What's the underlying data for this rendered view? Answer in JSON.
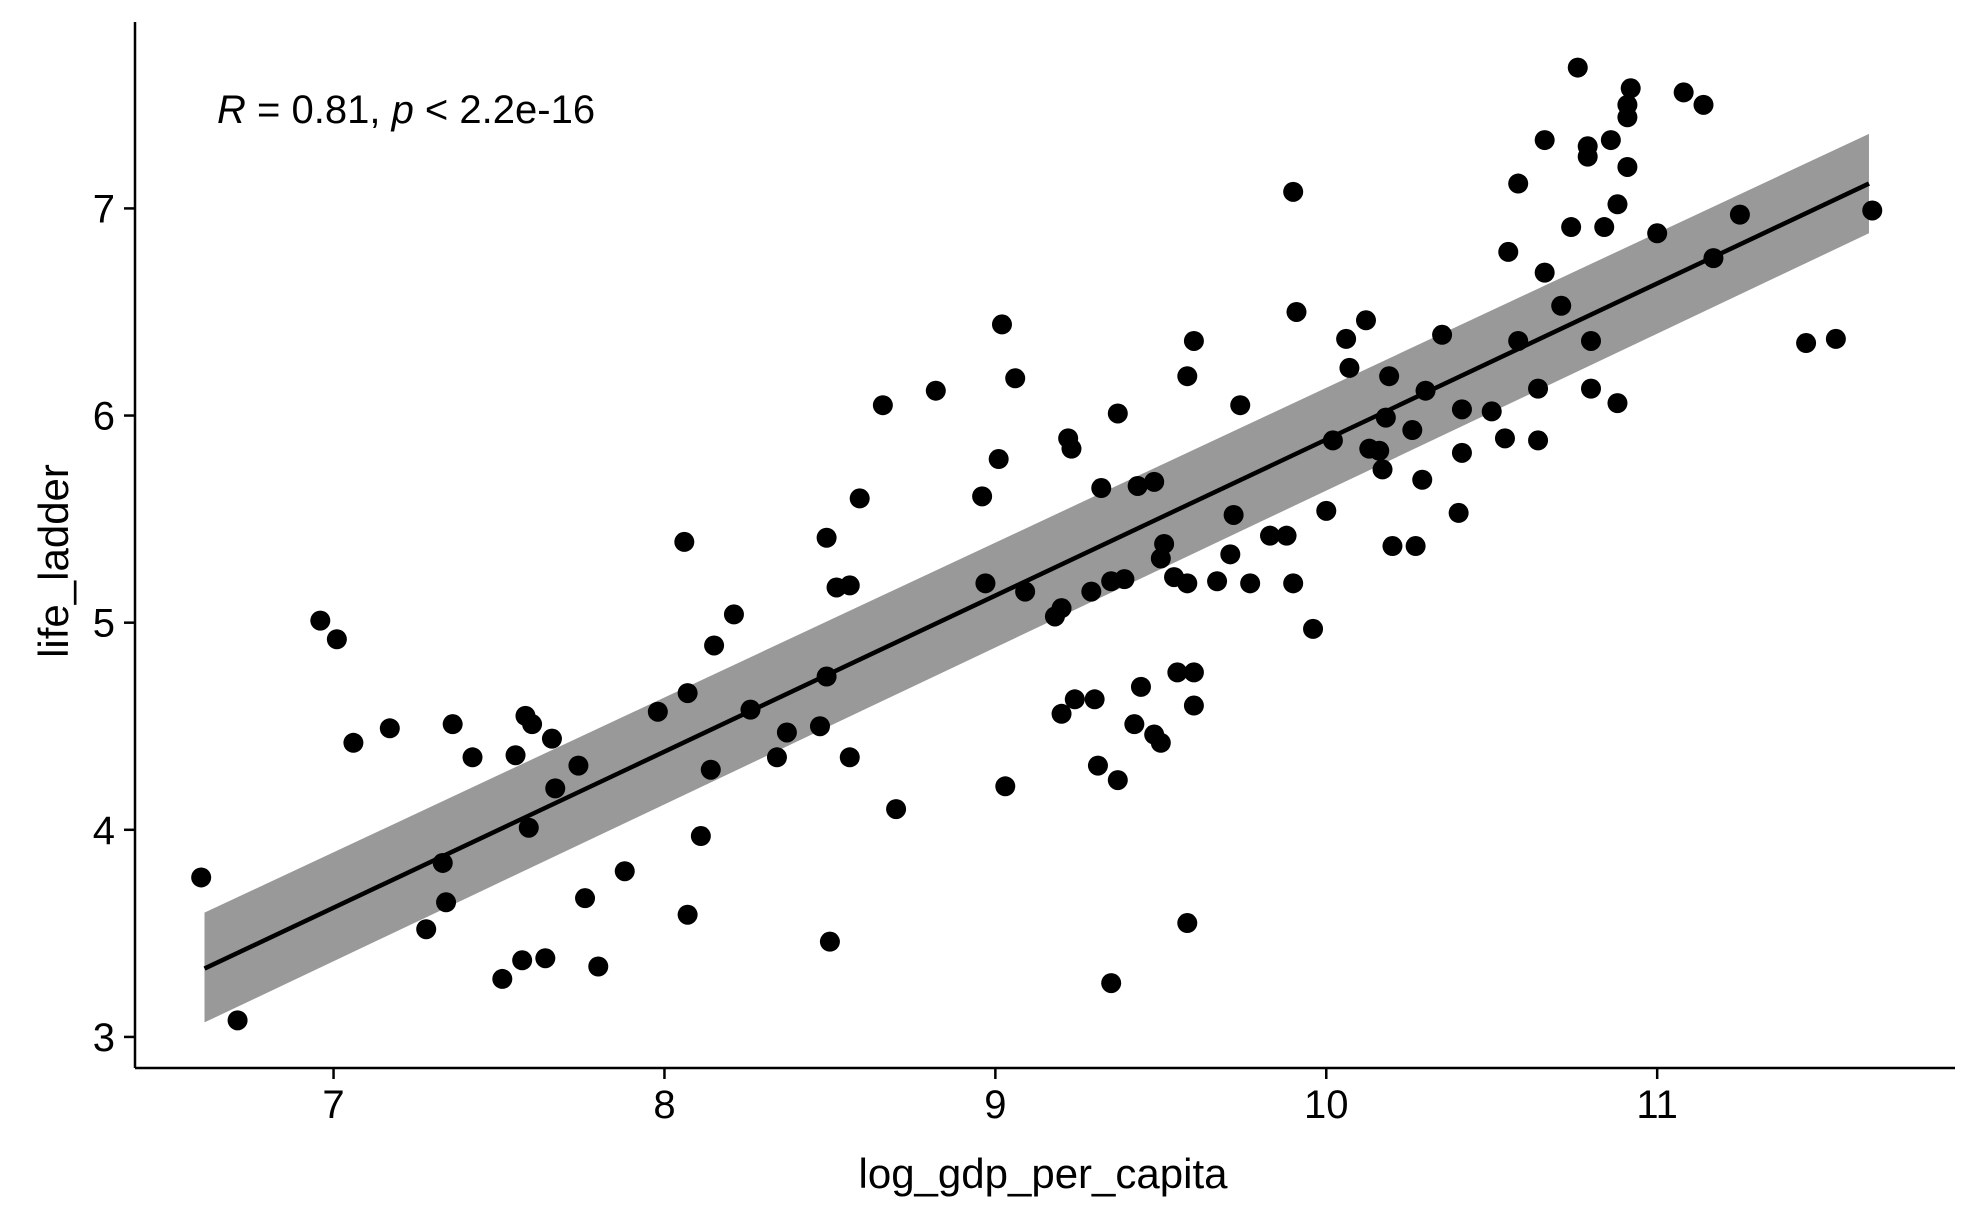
{
  "chart_data": {
    "type": "scatter",
    "title": "",
    "xlabel": "log_gdp_per_capita",
    "ylabel": "life_ladder",
    "xlim": [
      6.4,
      11.9
    ],
    "ylim": [
      2.85,
      7.9
    ],
    "x_ticks": [
      7,
      8,
      9,
      10,
      11
    ],
    "y_ticks": [
      3,
      4,
      5,
      6,
      7
    ],
    "x_tick_labels": [
      "7",
      "8",
      "9",
      "10",
      "11"
    ],
    "y_tick_labels": [
      "3",
      "4",
      "5",
      "6",
      "7"
    ],
    "grid": false,
    "legend": "none",
    "colors": {
      "points": "#000000",
      "line": "#000000",
      "band": "#999999"
    },
    "annotation": {
      "r_symbol": "R",
      "r_text": " = 0.81, ",
      "p_symbol": "p",
      "p_text": " < 2.2e-16"
    },
    "regression": {
      "x": [
        6.61,
        11.64
      ],
      "fit": [
        3.33,
        7.12
      ],
      "lower": [
        3.07,
        6.88
      ],
      "upper": [
        3.6,
        7.36
      ]
    },
    "points": [
      [
        6.6,
        3.77
      ],
      [
        6.71,
        3.08
      ],
      [
        6.96,
        5.01
      ],
      [
        7.01,
        4.92
      ],
      [
        7.06,
        4.42
      ],
      [
        7.17,
        4.49
      ],
      [
        7.28,
        3.52
      ],
      [
        7.33,
        3.84
      ],
      [
        7.34,
        3.65
      ],
      [
        7.36,
        4.51
      ],
      [
        7.42,
        4.35
      ],
      [
        7.51,
        3.28
      ],
      [
        7.55,
        4.36
      ],
      [
        7.57,
        3.37
      ],
      [
        7.58,
        4.55
      ],
      [
        7.59,
        4.01
      ],
      [
        7.6,
        4.51
      ],
      [
        7.64,
        3.38
      ],
      [
        7.66,
        4.44
      ],
      [
        7.67,
        4.2
      ],
      [
        7.74,
        4.31
      ],
      [
        7.76,
        3.67
      ],
      [
        7.8,
        3.34
      ],
      [
        7.88,
        3.8
      ],
      [
        7.98,
        4.57
      ],
      [
        8.06,
        5.39
      ],
      [
        8.07,
        4.66
      ],
      [
        8.07,
        3.59
      ],
      [
        8.11,
        3.97
      ],
      [
        8.14,
        4.29
      ],
      [
        8.15,
        4.89
      ],
      [
        8.21,
        5.04
      ],
      [
        8.26,
        4.58
      ],
      [
        8.34,
        4.35
      ],
      [
        8.37,
        4.47
      ],
      [
        8.47,
        4.5
      ],
      [
        8.49,
        5.41
      ],
      [
        8.49,
        4.74
      ],
      [
        8.5,
        3.46
      ],
      [
        8.52,
        5.17
      ],
      [
        8.56,
        5.18
      ],
      [
        8.56,
        4.35
      ],
      [
        8.59,
        5.6
      ],
      [
        8.66,
        6.05
      ],
      [
        8.7,
        4.1
      ],
      [
        8.82,
        6.12
      ],
      [
        8.96,
        5.61
      ],
      [
        8.97,
        5.19
      ],
      [
        9.01,
        5.79
      ],
      [
        9.02,
        6.44
      ],
      [
        9.03,
        4.21
      ],
      [
        9.06,
        6.18
      ],
      [
        9.09,
        5.15
      ],
      [
        9.18,
        5.03
      ],
      [
        9.2,
        5.07
      ],
      [
        9.2,
        4.56
      ],
      [
        9.22,
        5.89
      ],
      [
        9.23,
        5.84
      ],
      [
        9.24,
        4.63
      ],
      [
        9.29,
        5.15
      ],
      [
        9.3,
        4.63
      ],
      [
        9.31,
        4.31
      ],
      [
        9.32,
        5.65
      ],
      [
        9.35,
        5.2
      ],
      [
        9.35,
        3.26
      ],
      [
        9.37,
        6.01
      ],
      [
        9.37,
        4.24
      ],
      [
        9.39,
        5.21
      ],
      [
        9.42,
        4.51
      ],
      [
        9.43,
        5.66
      ],
      [
        9.44,
        4.69
      ],
      [
        9.48,
        5.68
      ],
      [
        9.48,
        4.46
      ],
      [
        9.5,
        5.31
      ],
      [
        9.5,
        4.42
      ],
      [
        9.51,
        5.38
      ],
      [
        9.54,
        5.22
      ],
      [
        9.55,
        4.76
      ],
      [
        9.58,
        6.19
      ],
      [
        9.58,
        5.19
      ],
      [
        9.58,
        3.55
      ],
      [
        9.6,
        6.36
      ],
      [
        9.6,
        4.76
      ],
      [
        9.6,
        4.6
      ],
      [
        9.67,
        5.2
      ],
      [
        9.71,
        5.33
      ],
      [
        9.72,
        5.52
      ],
      [
        9.74,
        6.05
      ],
      [
        9.77,
        5.19
      ],
      [
        9.83,
        5.42
      ],
      [
        9.88,
        5.42
      ],
      [
        9.9,
        7.08
      ],
      [
        9.9,
        5.19
      ],
      [
        9.91,
        6.5
      ],
      [
        9.96,
        4.97
      ],
      [
        10.0,
        5.54
      ],
      [
        10.02,
        5.88
      ],
      [
        10.06,
        6.37
      ],
      [
        10.07,
        6.23
      ],
      [
        10.12,
        6.46
      ],
      [
        10.13,
        5.84
      ],
      [
        10.16,
        5.83
      ],
      [
        10.17,
        5.74
      ],
      [
        10.18,
        5.99
      ],
      [
        10.19,
        6.19
      ],
      [
        10.2,
        5.37
      ],
      [
        10.26,
        5.93
      ],
      [
        10.27,
        5.37
      ],
      [
        10.29,
        5.69
      ],
      [
        10.3,
        6.12
      ],
      [
        10.35,
        6.39
      ],
      [
        10.4,
        5.53
      ],
      [
        10.41,
        6.03
      ],
      [
        10.41,
        5.82
      ],
      [
        10.5,
        6.02
      ],
      [
        10.54,
        5.89
      ],
      [
        10.55,
        6.79
      ],
      [
        10.58,
        7.12
      ],
      [
        10.58,
        6.36
      ],
      [
        10.64,
        6.13
      ],
      [
        10.64,
        5.88
      ],
      [
        10.66,
        7.33
      ],
      [
        10.66,
        6.69
      ],
      [
        10.71,
        6.53
      ],
      [
        10.74,
        6.91
      ],
      [
        10.76,
        7.68
      ],
      [
        10.79,
        7.3
      ],
      [
        10.79,
        7.25
      ],
      [
        10.8,
        6.36
      ],
      [
        10.8,
        6.13
      ],
      [
        10.84,
        6.91
      ],
      [
        10.86,
        7.33
      ],
      [
        10.88,
        7.02
      ],
      [
        10.88,
        6.06
      ],
      [
        10.91,
        7.5
      ],
      [
        10.91,
        7.44
      ],
      [
        10.91,
        7.2
      ],
      [
        10.92,
        7.58
      ],
      [
        11.0,
        6.88
      ],
      [
        11.08,
        7.56
      ],
      [
        11.14,
        7.5
      ],
      [
        11.17,
        6.76
      ],
      [
        11.25,
        6.97
      ],
      [
        11.45,
        6.35
      ],
      [
        11.54,
        6.37
      ],
      [
        11.65,
        6.99
      ]
    ]
  }
}
